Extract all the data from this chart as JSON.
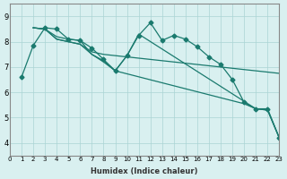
{
  "xlabel": "Humidex (Indice chaleur)",
  "ylabel": "",
  "background_color": "#d9f0f0",
  "line_color": "#1a7a6e",
  "xlim": [
    0,
    23
  ],
  "ylim": [
    3.5,
    9.5
  ],
  "yticks": [
    4,
    5,
    6,
    7,
    8,
    9
  ],
  "xticks": [
    0,
    1,
    2,
    3,
    4,
    5,
    6,
    7,
    8,
    9,
    10,
    11,
    12,
    13,
    14,
    15,
    16,
    17,
    18,
    19,
    20,
    21,
    22,
    23
  ],
  "series": [
    {
      "x": [
        1,
        2,
        3,
        4,
        5,
        6,
        7,
        8,
        9,
        10,
        11,
        12,
        13,
        14,
        15,
        16,
        17,
        18,
        19,
        20,
        21,
        22,
        23
      ],
      "y": [
        6.6,
        7.85,
        8.55,
        8.5,
        8.1,
        8.05,
        7.75,
        7.3,
        6.85,
        7.45,
        8.25,
        8.75,
        8.05,
        8.25,
        8.1,
        7.8,
        7.4,
        7.1,
        6.5,
        5.6,
        5.35,
        5.35,
        4.2
      ]
    },
    {
      "x": [
        2,
        3,
        4,
        5,
        6,
        7,
        8,
        9,
        10,
        11,
        12,
        13,
        14,
        15,
        16,
        17,
        18,
        19,
        20,
        21,
        22,
        23
      ],
      "y": [
        8.55,
        8.5,
        8.1,
        8.0,
        7.9,
        7.6,
        7.5,
        7.45,
        7.4,
        7.35,
        7.3,
        7.25,
        7.2,
        7.15,
        7.1,
        7.05,
        7.0,
        6.95,
        6.9,
        6.85,
        6.8,
        6.75
      ]
    },
    {
      "x": [
        2,
        3,
        4,
        5,
        6,
        7,
        8,
        9,
        20,
        21,
        22,
        23
      ],
      "y": [
        8.55,
        8.5,
        8.1,
        8.0,
        7.9,
        7.5,
        7.2,
        6.85,
        5.55,
        5.35,
        5.3,
        4.2
      ]
    },
    {
      "x": [
        2,
        3,
        4,
        5,
        6,
        7,
        8,
        9,
        10,
        11,
        21,
        22,
        23
      ],
      "y": [
        8.55,
        8.5,
        8.2,
        8.1,
        8.05,
        7.5,
        7.25,
        6.85,
        7.45,
        8.3,
        5.35,
        5.3,
        4.2
      ]
    }
  ]
}
